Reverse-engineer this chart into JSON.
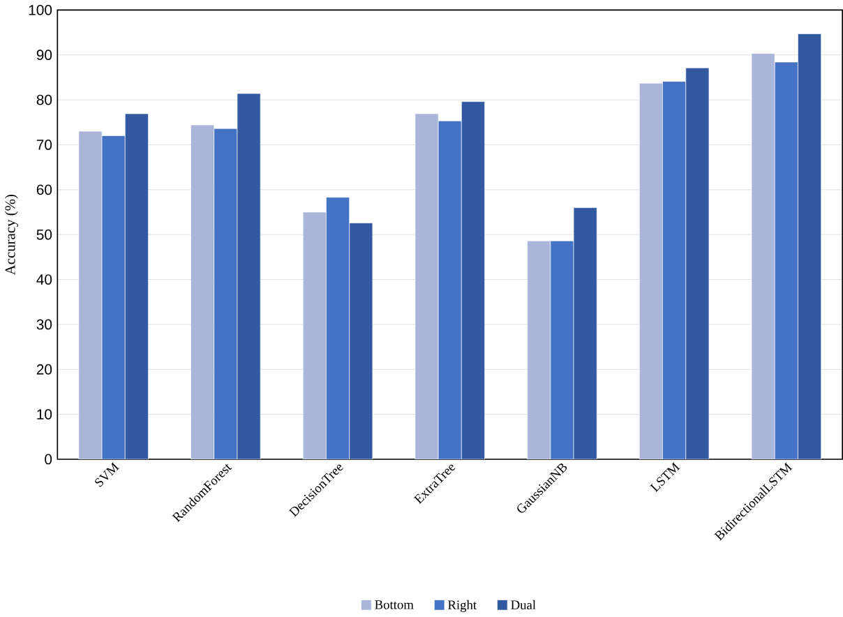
{
  "chart_data": {
    "type": "bar",
    "ylabel": "Accuracy (%)",
    "categories": [
      "SVM",
      "RandomForest",
      "DecisionTree",
      "ExtraTree",
      "GaussianNB",
      "LSTM",
      "BidirectionalLSTM"
    ],
    "series": [
      {
        "name": "Bottom",
        "color": "#a9b5d9",
        "values": [
          73.0,
          74.4,
          55.0,
          76.9,
          48.6,
          83.7,
          90.3
        ]
      },
      {
        "name": "Right",
        "color": "#4472c4",
        "values": [
          72.0,
          73.6,
          58.3,
          75.3,
          48.6,
          84.1,
          88.4
        ]
      },
      {
        "name": "Dual",
        "color": "#335aa0",
        "values": [
          76.9,
          81.4,
          52.6,
          79.6,
          56.0,
          87.1,
          94.7
        ]
      }
    ],
    "ylim": [
      0,
      100
    ],
    "yticks": [
      0,
      10,
      20,
      30,
      40,
      50,
      60,
      70,
      80,
      90,
      100
    ],
    "grid": "y",
    "legend": "bottom"
  }
}
